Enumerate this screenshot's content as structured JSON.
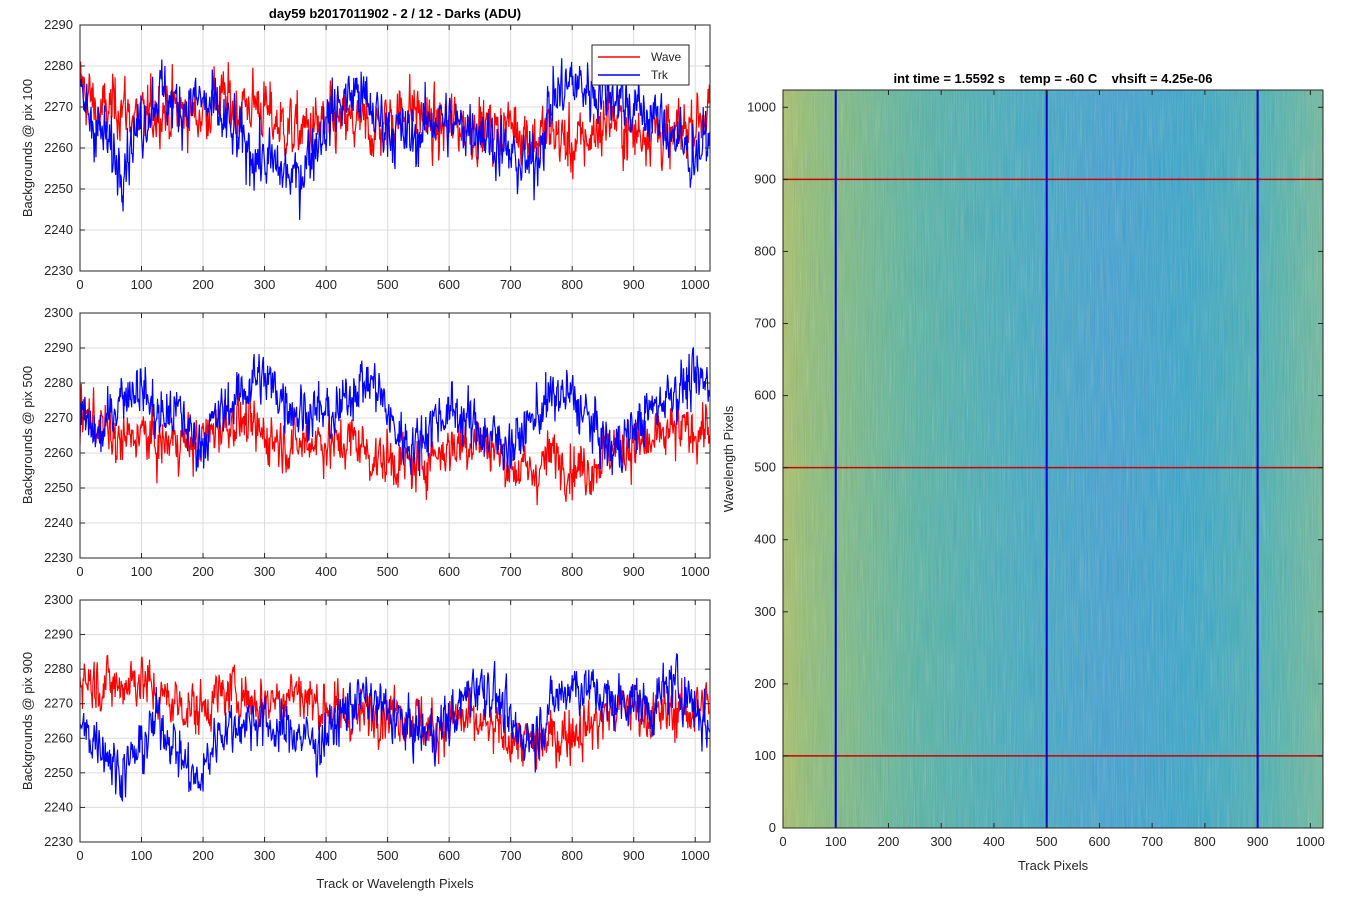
{
  "figure": {
    "title": "day59 b2017011902 - 2 / 12 - Darks (ADU)"
  },
  "colors": {
    "wave": "#ff0000",
    "trk": "#0000ff",
    "grid": "#d9d9d9",
    "axis": "#262626"
  },
  "chart_data": [
    {
      "type": "line",
      "ylabel": "Backgrounds @ pix 100",
      "xlabel": "",
      "xlim": [
        0,
        1024
      ],
      "ylim": [
        2230,
        2290
      ],
      "xticks": [
        "0",
        "100",
        "200",
        "300",
        "400",
        "500",
        "600",
        "700",
        "800",
        "900",
        "1000"
      ],
      "yticks": [
        "2230",
        "2240",
        "2250",
        "2260",
        "2270",
        "2280",
        "2290"
      ],
      "grid": true,
      "legend": {
        "placement": "top-right",
        "entries": [
          "Wave",
          "Trk"
        ]
      },
      "series": [
        {
          "name": "Wave",
          "color": "#ff0000",
          "x": [
            0,
            32,
            64,
            96,
            128,
            160,
            192,
            224,
            256,
            288,
            320,
            352,
            384,
            416,
            448,
            480,
            512,
            544,
            576,
            608,
            640,
            672,
            704,
            736,
            768,
            800,
            832,
            864,
            896,
            928,
            960,
            992,
            1024
          ],
          "y": [
            2276,
            2268,
            2271,
            2266,
            2270,
            2269,
            2268,
            2272,
            2270,
            2271,
            2266,
            2264,
            2265,
            2266,
            2266,
            2264,
            2268,
            2270,
            2264,
            2266,
            2265,
            2264,
            2266,
            2262,
            2264,
            2260,
            2263,
            2268,
            2263,
            2265,
            2262,
            2266,
            2270
          ]
        },
        {
          "name": "Trk",
          "color": "#0000ff",
          "x": [
            0,
            32,
            64,
            96,
            128,
            160,
            192,
            224,
            256,
            288,
            320,
            352,
            384,
            416,
            448,
            480,
            512,
            544,
            576,
            608,
            640,
            672,
            704,
            736,
            768,
            800,
            832,
            864,
            896,
            928,
            960,
            992,
            1024
          ],
          "y": [
            2272,
            2264,
            2256,
            2265,
            2274,
            2270,
            2272,
            2268,
            2262,
            2258,
            2255,
            2252,
            2262,
            2270,
            2274,
            2268,
            2264,
            2262,
            2268,
            2265,
            2266,
            2262,
            2257,
            2255,
            2272,
            2276,
            2274,
            2274,
            2270,
            2268,
            2264,
            2258,
            2262
          ]
        }
      ]
    },
    {
      "type": "line",
      "ylabel": "Backgrounds @ pix 500",
      "xlabel": "",
      "xlim": [
        0,
        1024
      ],
      "ylim": [
        2230,
        2300
      ],
      "xticks": [
        "0",
        "100",
        "200",
        "300",
        "400",
        "500",
        "600",
        "700",
        "800",
        "900",
        "1000"
      ],
      "yticks": [
        "2230",
        "2240",
        "2250",
        "2260",
        "2270",
        "2280",
        "2290",
        "2300"
      ],
      "grid": true,
      "series": [
        {
          "name": "Wave",
          "color": "#ff0000",
          "x": [
            0,
            32,
            64,
            96,
            128,
            160,
            192,
            224,
            256,
            288,
            320,
            352,
            384,
            416,
            448,
            480,
            512,
            544,
            576,
            608,
            640,
            672,
            704,
            736,
            768,
            800,
            832,
            864,
            896,
            928,
            960,
            992,
            1024
          ],
          "y": [
            2272,
            2268,
            2262,
            2266,
            2262,
            2264,
            2262,
            2268,
            2270,
            2266,
            2264,
            2262,
            2264,
            2262,
            2264,
            2258,
            2258,
            2256,
            2260,
            2262,
            2264,
            2262,
            2256,
            2254,
            2260,
            2256,
            2256,
            2262,
            2262,
            2262,
            2266,
            2266,
            2268
          ]
        },
        {
          "name": "Trk",
          "color": "#0000ff",
          "x": [
            0,
            32,
            64,
            96,
            128,
            160,
            192,
            224,
            256,
            288,
            320,
            352,
            384,
            416,
            448,
            480,
            512,
            544,
            576,
            608,
            640,
            672,
            704,
            736,
            768,
            800,
            832,
            864,
            896,
            928,
            960,
            992,
            1024
          ],
          "y": [
            2270,
            2264,
            2276,
            2280,
            2270,
            2272,
            2262,
            2270,
            2276,
            2282,
            2278,
            2272,
            2272,
            2270,
            2280,
            2280,
            2266,
            2262,
            2270,
            2272,
            2268,
            2264,
            2262,
            2270,
            2276,
            2276,
            2268,
            2260,
            2266,
            2272,
            2278,
            2280,
            2280
          ]
        }
      ]
    },
    {
      "type": "line",
      "ylabel": "Backgrounds @ pix 900",
      "xlabel": "Track or Wavelength Pixels",
      "xlim": [
        0,
        1024
      ],
      "ylim": [
        2230,
        2300
      ],
      "xticks": [
        "0",
        "100",
        "200",
        "300",
        "400",
        "500",
        "600",
        "700",
        "800",
        "900",
        "1000"
      ],
      "yticks": [
        "2230",
        "2240",
        "2250",
        "2260",
        "2270",
        "2280",
        "2290",
        "2300"
      ],
      "grid": true,
      "series": [
        {
          "name": "Wave",
          "color": "#ff0000",
          "x": [
            0,
            32,
            64,
            96,
            128,
            160,
            192,
            224,
            256,
            288,
            320,
            352,
            384,
            416,
            448,
            480,
            512,
            544,
            576,
            608,
            640,
            672,
            704,
            736,
            768,
            800,
            832,
            864,
            896,
            928,
            960,
            992,
            1024
          ],
          "y": [
            2278,
            2276,
            2275,
            2278,
            2272,
            2270,
            2268,
            2272,
            2274,
            2270,
            2272,
            2274,
            2270,
            2268,
            2266,
            2268,
            2268,
            2266,
            2262,
            2266,
            2264,
            2262,
            2260,
            2258,
            2260,
            2262,
            2264,
            2268,
            2270,
            2266,
            2268,
            2268,
            2270
          ]
        },
        {
          "name": "Trk",
          "color": "#0000ff",
          "x": [
            0,
            32,
            64,
            96,
            128,
            160,
            192,
            224,
            256,
            288,
            320,
            352,
            384,
            416,
            448,
            480,
            512,
            544,
            576,
            608,
            640,
            672,
            704,
            736,
            768,
            800,
            832,
            864,
            896,
            928,
            960,
            992,
            1024
          ],
          "y": [
            2262,
            2260,
            2250,
            2256,
            2266,
            2256,
            2246,
            2262,
            2264,
            2266,
            2262,
            2262,
            2258,
            2264,
            2272,
            2270,
            2266,
            2262,
            2262,
            2266,
            2276,
            2274,
            2262,
            2260,
            2270,
            2276,
            2274,
            2270,
            2272,
            2268,
            2276,
            2272,
            2262
          ]
        }
      ]
    },
    {
      "type": "heatmap",
      "title": "int time = 1.5592 s    temp = -60 C    vhsift = 4.25e-06",
      "xlabel": "Track Pixels",
      "ylabel": "Wavelength Pixels",
      "xlim": [
        0,
        1024
      ],
      "ylim": [
        0,
        1024
      ],
      "xticks": [
        "0",
        "100",
        "200",
        "300",
        "400",
        "500",
        "600",
        "700",
        "800",
        "900",
        "1000"
      ],
      "yticks": [
        "0",
        "100",
        "200",
        "300",
        "400",
        "500",
        "600",
        "700",
        "800",
        "900",
        "1000"
      ],
      "colors": {
        "low": "#1f8fd6",
        "mid": "#2ab0b0",
        "high": "#b8c060"
      },
      "overlay_lines": {
        "vertical_x": [
          100,
          500,
          900
        ],
        "vertical_color": "#0000cc",
        "horizontal_y": [
          100,
          500,
          900
        ],
        "horizontal_color": "#cc0000"
      }
    }
  ]
}
